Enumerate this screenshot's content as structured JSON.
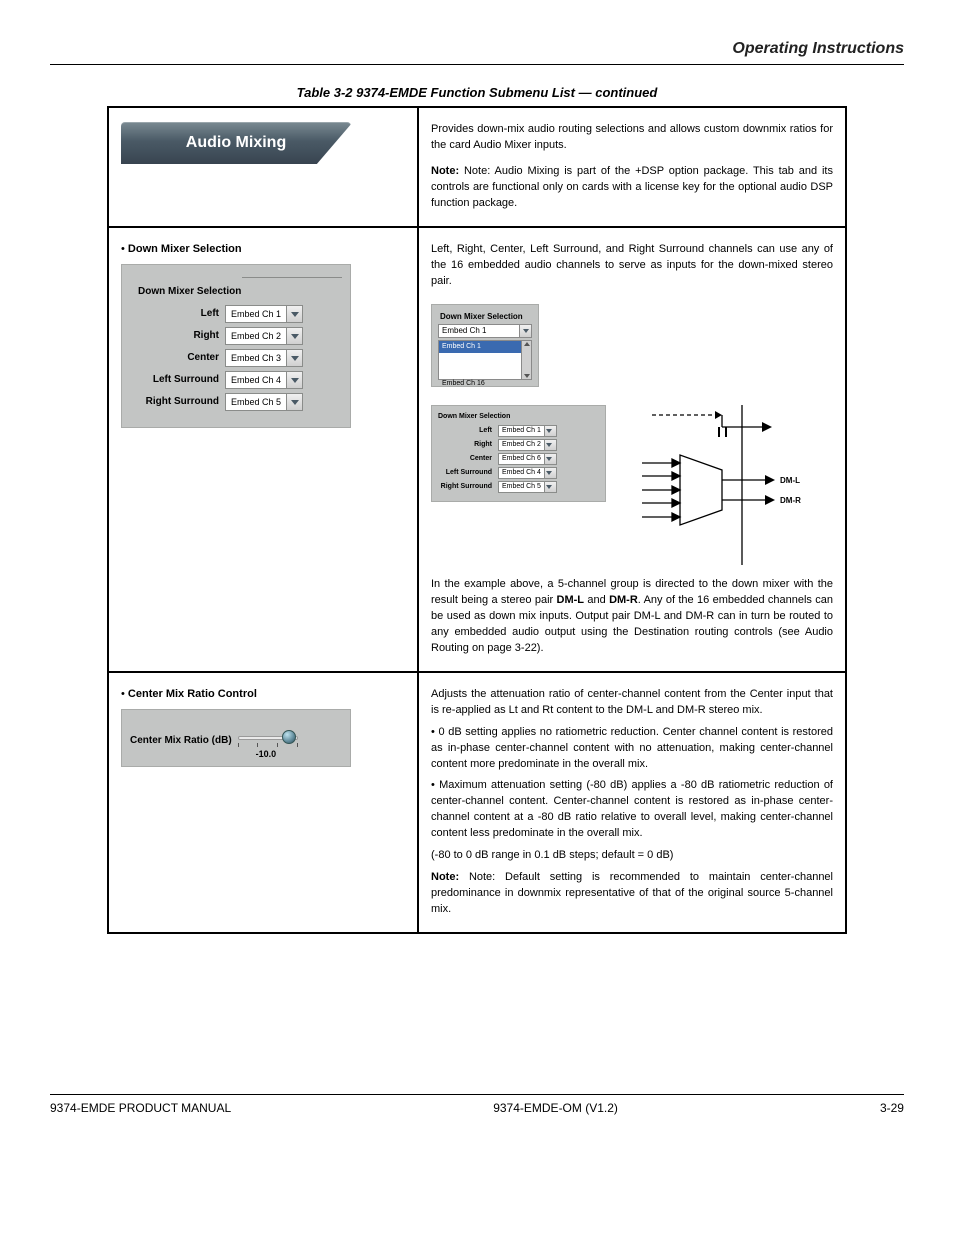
{
  "header": {
    "right": "Operating Instructions"
  },
  "caption": "Table 3-2   9374-EMDE Function Submenu List — continued",
  "tab": {
    "title": "Audio Mixing"
  },
  "row1": {
    "right": [
      "Provides down-mix audio routing selections and allows custom downmix ratios for the card Audio Mixer inputs.",
      "Note: Audio Mixing is part of the +DSP option package. This tab and its controls are functional only on cards with a license key for the optional audio DSP function package."
    ]
  },
  "row2": {
    "left": {
      "title": "Down Mixer Selection",
      "rows": [
        {
          "label": "Left",
          "value": "Embed Ch 1"
        },
        {
          "label": "Right",
          "value": "Embed Ch 2"
        },
        {
          "label": "Center",
          "value": "Embed Ch 3"
        },
        {
          "label": "Left Surround",
          "value": "Embed Ch 4"
        },
        {
          "label": "Right Surround",
          "value": "Embed Ch 5"
        }
      ]
    },
    "right": {
      "intro": "Left, Right, Center, Left Surround, and Right Surround channels can use any of the 16 embedded audio channels to serve as inputs for the down-mixed stereo pair.",
      "small_title": "Down Mixer Selection",
      "small_sel": "Embed Ch 1",
      "list_sel": "Embed Ch 1",
      "list_last": "Embed Ch 16",
      "mid_title": "Down Mixer Selection",
      "mid_rows": [
        {
          "label": "Left",
          "value": "Embed Ch 1"
        },
        {
          "label": "Right",
          "value": "Embed Ch 2"
        },
        {
          "label": "Center",
          "value": "Embed Ch 6"
        },
        {
          "label": "Left Surround",
          "value": "Embed Ch 4"
        },
        {
          "label": "Right Surround",
          "value": "Embed Ch 5"
        }
      ],
      "desc_before": "In the example above, a 5-channel group is directed to the down mixer with the result being a stereo pair",
      "dmL": "DM-L",
      "dmR": "DM-R",
      "desc_end": "Any of the 16 embedded channels can be used as down mix inputs. Output pair DM-L and DM-R can in turn be routed to any embedded audio output using the Destination routing controls (see Audio Routing on page 3-22)."
    }
  },
  "row3": {
    "left_label": "Center Mix Ratio (dB)",
    "left_value": "-10.0",
    "right": [
      "Adjusts the attenuation ratio of center-channel content from the Center input that is re-applied as Lt and Rt content to the DM-L and DM-R stereo mix.",
      "• 0 dB setting applies no ratiometric reduction. Center channel content is restored as in-phase center-channel content with no attenuation, making center-channel content more predominate in the overall mix.",
      "• Maximum attenuation setting (-80 dB) applies a -80 dB ratiometric reduction of center-channel content. Center-channel content is restored as in-phase center-channel content at a -80 dB ratio relative to overall level, making center-channel content less predominate in the overall mix.",
      "(-80 to 0 dB range in 0.1 dB steps; default = 0 dB)",
      "Note: Default setting is recommended to maintain center-channel predominance in downmix representative of that of the original source 5-channel mix."
    ]
  },
  "footer": {
    "left": "9374-EMDE PRODUCT MANUAL",
    "mid": "9374-EMDE-OM (V1.2)",
    "right": "3-29"
  }
}
